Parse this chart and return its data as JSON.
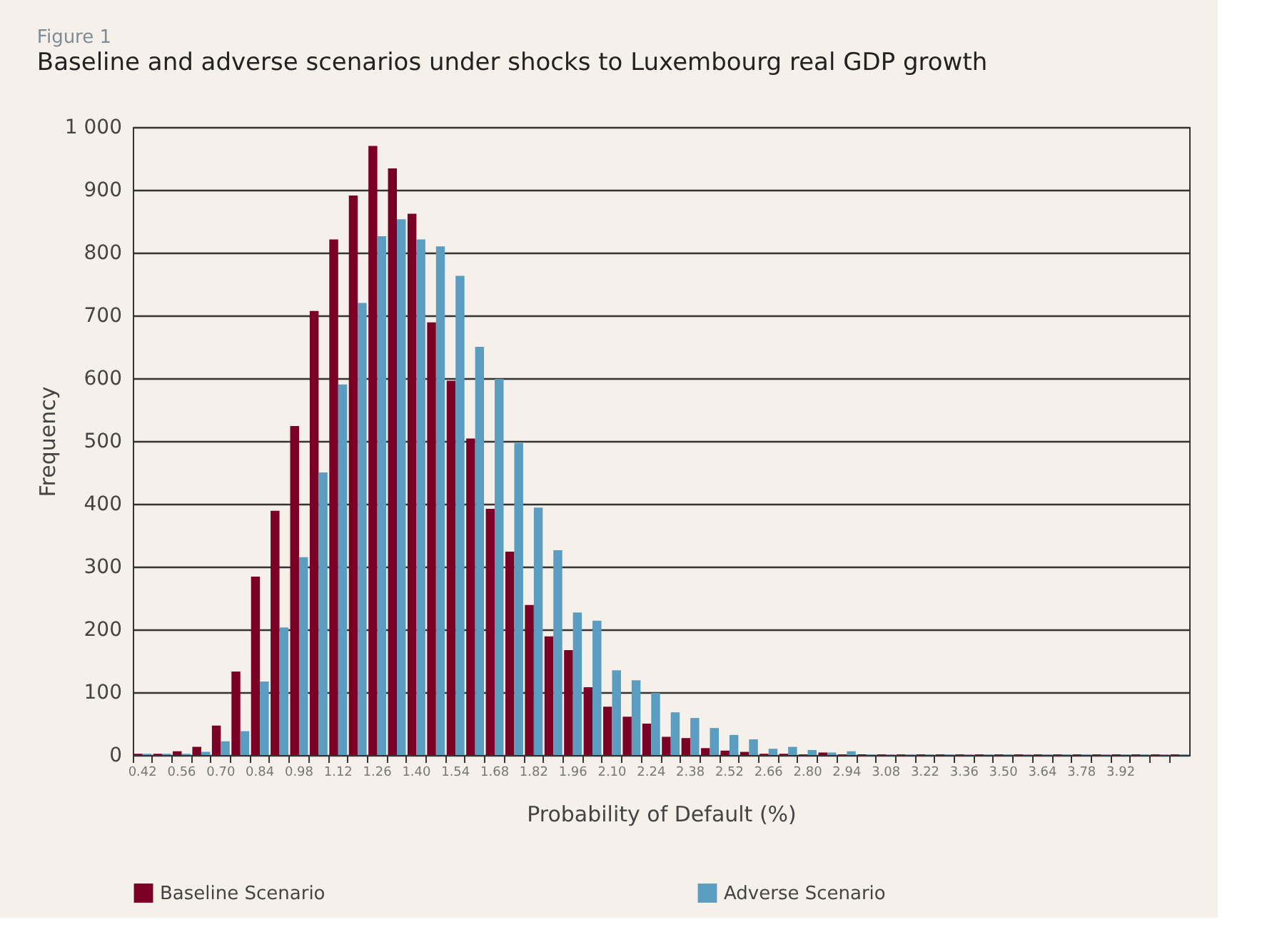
{
  "chart_data": {
    "type": "bar",
    "title": "Figure 1",
    "subtitle": "Baseline and adverse scenarios under shocks to Luxembourg real GDP growth",
    "xlabel": "Probability of Default (%)",
    "ylabel": "Frequency",
    "categories": [
      "0.42",
      null,
      "0.56",
      null,
      "0.70",
      null,
      "0.84",
      null,
      "0.98",
      null,
      "1.12",
      null,
      "1.26",
      null,
      "1.40",
      null,
      "1.54",
      null,
      "1.68",
      null,
      "1.82",
      null,
      "1.96",
      null,
      "2.10",
      null,
      "2.24",
      null,
      "2.38",
      null,
      "2.52",
      null,
      "2.66",
      null,
      "2.80",
      null,
      "2.94",
      null,
      "3.08",
      null,
      "3.22",
      null,
      "3.36",
      null,
      "3.50",
      null,
      "3.64",
      null,
      "3.78",
      null,
      "3.92",
      null,
      null,
      null
    ],
    "series": [
      {
        "name": "Baseline Scenario",
        "color": "#7a0025",
        "values": [
          2,
          2,
          6,
          13,
          47,
          133,
          284,
          389,
          524,
          707,
          821,
          891,
          970,
          934,
          862,
          689,
          596,
          504,
          392,
          324,
          239,
          189,
          167,
          108,
          77,
          61,
          50,
          29,
          27,
          11,
          7,
          5,
          2,
          2,
          1,
          4,
          1,
          1,
          1,
          1,
          1,
          1,
          1,
          1,
          1,
          1,
          1,
          1,
          1,
          1,
          1,
          1,
          1,
          1
        ]
      },
      {
        "name": "Adverse Scenario",
        "color": "#5b9dc0",
        "values": [
          2,
          2,
          2,
          5,
          22,
          38,
          117,
          203,
          315,
          450,
          590,
          720,
          826,
          853,
          821,
          810,
          763,
          650,
          599,
          497,
          394,
          326,
          227,
          214,
          135,
          119,
          99,
          68,
          59,
          43,
          32,
          25,
          10,
          13,
          8,
          4,
          6,
          1,
          1,
          1,
          1,
          1,
          1,
          1,
          1,
          1,
          1,
          1,
          1,
          1,
          1,
          1,
          1,
          1
        ]
      }
    ],
    "ylim": [
      0,
      1000
    ],
    "yticks": [
      0,
      100,
      200,
      300,
      400,
      500,
      600,
      700,
      800,
      900,
      {
        "value": 1000,
        "label": "1 000"
      }
    ],
    "grid": "y",
    "legend": "bottom"
  }
}
